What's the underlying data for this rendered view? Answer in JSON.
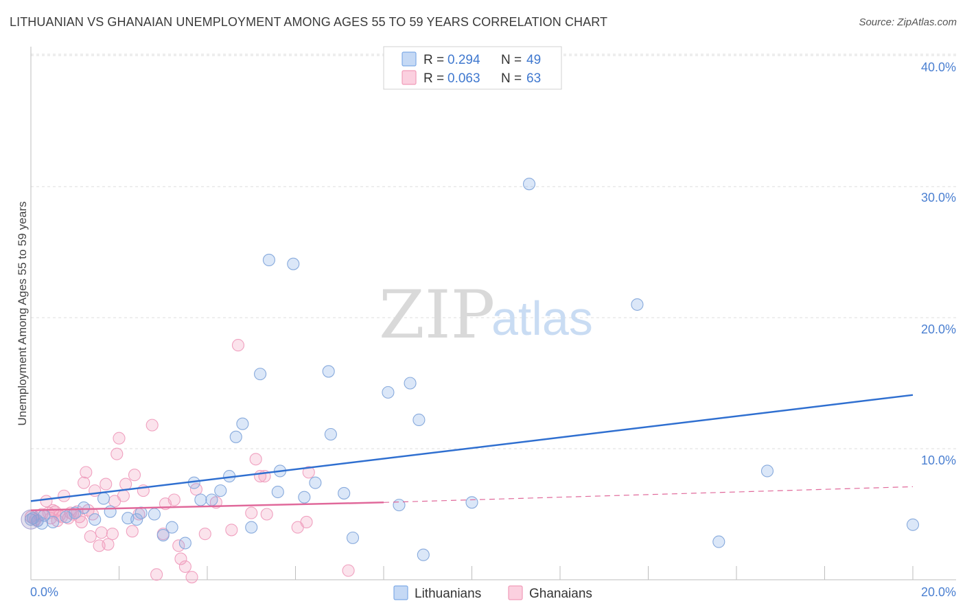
{
  "header": {
    "title": "LITHUANIAN VS GHANAIAN UNEMPLOYMENT AMONG AGES 55 TO 59 YEARS CORRELATION CHART",
    "source": "Source: ZipAtlas.com"
  },
  "legend": {
    "rows": [
      {
        "r_label": "R =",
        "r_value": "0.294",
        "n_label": "N =",
        "n_value": "49",
        "color": "#7eaae6"
      },
      {
        "r_label": "R =",
        "r_value": "0.063",
        "n_label": "N =",
        "n_value": "63",
        "color": "#f19bb9"
      }
    ]
  },
  "bottom_legend": {
    "items": [
      {
        "label": "Lithuanians",
        "color": "#7eaae6"
      },
      {
        "label": "Ghanaians",
        "color": "#f19bb9"
      }
    ]
  },
  "watermark": {
    "zip": "ZIP",
    "atlas": "atlas"
  },
  "axes": {
    "ylabel": "Unemployment Among Ages 55 to 59 years",
    "y_ticks": [
      "10.0%",
      "20.0%",
      "30.0%",
      "40.0%"
    ],
    "x_ticks": [
      "0.0%",
      "20.0%"
    ]
  },
  "chart_data": {
    "type": "scatter",
    "title": "LITHUANIAN VS GHANAIAN UNEMPLOYMENT AMONG AGES 55 TO 59 YEARS CORRELATION CHART",
    "xlabel": "",
    "ylabel": "Unemployment Among Ages 55 to 59 years",
    "xlim": [
      0,
      21
    ],
    "ylim": [
      0,
      40.5
    ],
    "grid": true,
    "colors": {
      "blue": "#7eaae6",
      "blue_line": "#2f6fd0",
      "pink": "#f19bb9",
      "pink_line": "#e0689a"
    },
    "series": [
      {
        "name": "Lithuanians",
        "r": 0.294,
        "n": 49,
        "points": [
          [
            0.0,
            4.6
          ],
          [
            0.15,
            4.5
          ],
          [
            0.3,
            4.9
          ],
          [
            0.5,
            4.4
          ],
          [
            0.8,
            4.8
          ],
          [
            1.0,
            5.1
          ],
          [
            1.2,
            5.5
          ],
          [
            1.45,
            4.6
          ],
          [
            1.65,
            6.2
          ],
          [
            1.8,
            5.2
          ],
          [
            2.2,
            4.7
          ],
          [
            2.4,
            4.6
          ],
          [
            2.5,
            5.1
          ],
          [
            2.8,
            5.0
          ],
          [
            3.0,
            3.4
          ],
          [
            3.2,
            4.0
          ],
          [
            3.5,
            2.8
          ],
          [
            3.7,
            7.4
          ],
          [
            3.85,
            6.1
          ],
          [
            4.1,
            6.1
          ],
          [
            4.3,
            6.8
          ],
          [
            4.5,
            7.9
          ],
          [
            4.65,
            10.9
          ],
          [
            4.8,
            11.9
          ],
          [
            5.0,
            4.0
          ],
          [
            5.2,
            15.7
          ],
          [
            5.4,
            24.4
          ],
          [
            5.6,
            6.7
          ],
          [
            5.65,
            8.3
          ],
          [
            5.95,
            24.1
          ],
          [
            6.2,
            6.3
          ],
          [
            6.45,
            7.4
          ],
          [
            6.75,
            15.9
          ],
          [
            6.8,
            11.1
          ],
          [
            7.1,
            6.6
          ],
          [
            7.3,
            3.2
          ],
          [
            8.1,
            14.3
          ],
          [
            8.35,
            5.7
          ],
          [
            8.6,
            15.0
          ],
          [
            8.8,
            12.2
          ],
          [
            8.9,
            1.9
          ],
          [
            10.0,
            5.9
          ],
          [
            11.3,
            30.2
          ],
          [
            13.75,
            21.0
          ],
          [
            15.6,
            2.9
          ],
          [
            16.7,
            8.3
          ],
          [
            20.0,
            4.2
          ],
          [
            0.25,
            4.3
          ],
          [
            0.05,
            4.7
          ]
        ],
        "trend": {
          "x": [
            0,
            20
          ],
          "y": [
            6.0,
            14.1
          ]
        }
      },
      {
        "name": "Ghanaians",
        "r": 0.063,
        "n": 63,
        "points": [
          [
            0.0,
            4.8
          ],
          [
            0.1,
            4.6
          ],
          [
            0.25,
            5.0
          ],
          [
            0.35,
            6.0
          ],
          [
            0.45,
            4.7
          ],
          [
            0.55,
            5.2
          ],
          [
            0.65,
            4.9
          ],
          [
            0.75,
            6.4
          ],
          [
            0.85,
            4.7
          ],
          [
            0.95,
            5.0
          ],
          [
            1.05,
            5.2
          ],
          [
            1.1,
            4.8
          ],
          [
            1.2,
            7.4
          ],
          [
            1.25,
            8.2
          ],
          [
            1.35,
            3.3
          ],
          [
            1.4,
            5.0
          ],
          [
            1.45,
            6.8
          ],
          [
            1.55,
            2.6
          ],
          [
            1.6,
            3.6
          ],
          [
            1.7,
            7.3
          ],
          [
            1.75,
            2.7
          ],
          [
            1.85,
            3.5
          ],
          [
            1.95,
            9.6
          ],
          [
            2.0,
            10.8
          ],
          [
            2.1,
            6.4
          ],
          [
            2.15,
            7.3
          ],
          [
            2.3,
            3.7
          ],
          [
            2.35,
            8.0
          ],
          [
            2.55,
            6.8
          ],
          [
            2.75,
            11.8
          ],
          [
            2.85,
            0.4
          ],
          [
            3.0,
            3.5
          ],
          [
            3.25,
            6.1
          ],
          [
            3.35,
            2.6
          ],
          [
            3.4,
            1.6
          ],
          [
            3.5,
            1.0
          ],
          [
            3.65,
            0.2
          ],
          [
            3.75,
            6.9
          ],
          [
            3.95,
            3.5
          ],
          [
            4.2,
            5.9
          ],
          [
            4.55,
            3.8
          ],
          [
            4.7,
            17.9
          ],
          [
            5.0,
            5.1
          ],
          [
            5.1,
            9.2
          ],
          [
            5.2,
            7.9
          ],
          [
            5.3,
            7.9
          ],
          [
            5.35,
            5.0
          ],
          [
            6.05,
            4.0
          ],
          [
            6.25,
            4.4
          ],
          [
            6.3,
            8.2
          ],
          [
            7.2,
            0.7
          ],
          [
            0.6,
            4.5
          ],
          [
            0.9,
            5.1
          ],
          [
            1.15,
            4.4
          ],
          [
            0.2,
            4.9
          ],
          [
            0.4,
            5.1
          ],
          [
            0.7,
            4.8
          ],
          [
            1.3,
            5.3
          ],
          [
            2.45,
            5.0
          ],
          [
            1.9,
            6.0
          ],
          [
            0.15,
            4.5
          ],
          [
            3.05,
            5.8
          ],
          [
            0.5,
            5.3
          ]
        ],
        "trend": {
          "x": [
            0,
            8
          ],
          "y": [
            5.3,
            5.9
          ]
        },
        "trend_dashed": {
          "x": [
            8,
            20
          ],
          "y": [
            5.9,
            7.1
          ]
        }
      }
    ]
  }
}
